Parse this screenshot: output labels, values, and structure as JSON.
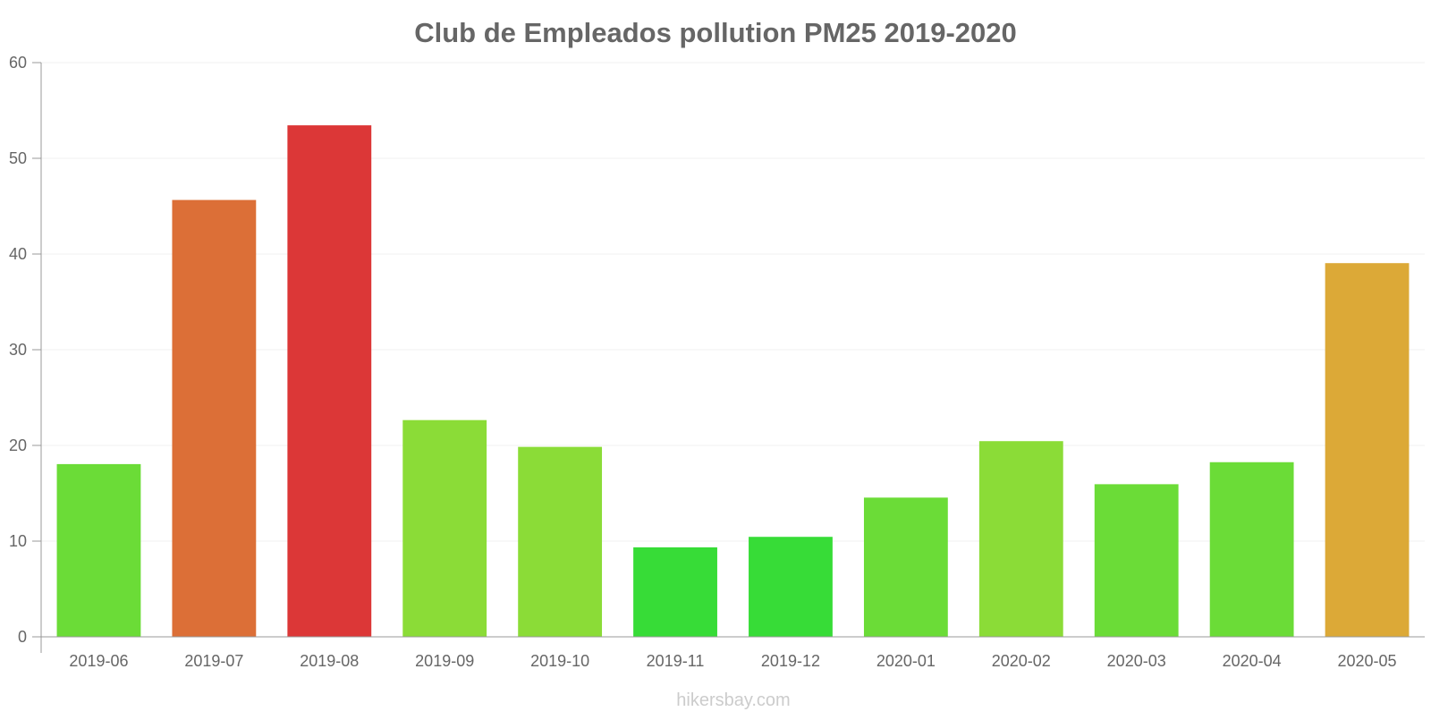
{
  "chart_data": {
    "type": "bar",
    "title": "Club de Empleados pollution PM25 2019-2020",
    "xlabel": "",
    "ylabel": "",
    "ylim": [
      0,
      60
    ],
    "yticks": [
      0,
      10,
      20,
      30,
      40,
      50,
      60
    ],
    "grid": true,
    "categories": [
      "2019-06",
      "2019-07",
      "2019-08",
      "2019-09",
      "2019-10",
      "2019-11",
      "2019-12",
      "2020-01",
      "2020-02",
      "2020-03",
      "2020-04",
      "2020-05"
    ],
    "values": [
      18,
      45.6,
      53.4,
      22.6,
      19.8,
      9.3,
      10.4,
      14.5,
      20.4,
      15.9,
      18.2,
      39
    ],
    "colors": [
      "#6bdc37",
      "#dc6f37",
      "#dc3737",
      "#8bdc37",
      "#8bdc37",
      "#37dc37",
      "#37dc37",
      "#6bdc37",
      "#8bdc37",
      "#6bdc37",
      "#6bdc37",
      "#dca937"
    ]
  },
  "watermark": "hikersbay.com"
}
